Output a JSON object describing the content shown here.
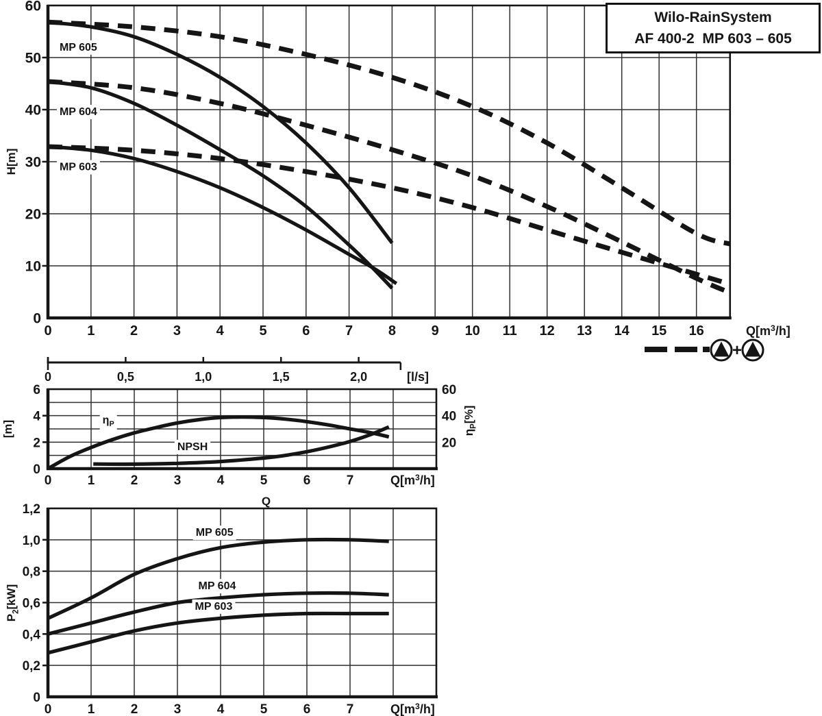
{
  "title_box": {
    "line1": "Wilo-RainSystem",
    "line2": "AF 400-2  MP 603 – 605"
  },
  "chart_data": [
    {
      "id": "hq",
      "type": "line",
      "title": "",
      "x_axis": {
        "label": {
          "pre": "Q[m",
          "sup": "3",
          "post": "/h]"
        },
        "ticks": [
          "0",
          "1",
          "2",
          "3",
          "4",
          "5",
          "6",
          "7",
          "8",
          "9",
          "10",
          "11",
          "12",
          "13",
          "14",
          "15",
          "16"
        ],
        "range": [
          0,
          16.9
        ],
        "grid": true
      },
      "y_axis": {
        "label": "H[m]",
        "ticks": [
          "0",
          "10",
          "20",
          "30",
          "40",
          "50",
          "60"
        ],
        "range": [
          0,
          60
        ],
        "grid": true
      },
      "series": [
        {
          "name": "MP 605",
          "style": "solid",
          "points": [
            [
              0,
              56.8
            ],
            [
              1,
              55.9
            ],
            [
              2,
              54.0
            ],
            [
              3,
              50.6
            ],
            [
              4,
              46.2
            ],
            [
              5,
              40.6
            ],
            [
              6,
              33.6
            ],
            [
              7,
              25.0
            ],
            [
              8,
              14.4
            ]
          ]
        },
        {
          "name": "MP 604",
          "style": "solid",
          "points": [
            [
              0,
              45.4
            ],
            [
              1,
              44.2
            ],
            [
              2,
              41.2
            ],
            [
              3,
              37.0
            ],
            [
              4,
              32.3
            ],
            [
              5,
              27.3
            ],
            [
              6,
              21.4
            ],
            [
              7,
              14.0
            ],
            [
              7.5,
              10.0
            ],
            [
              8,
              5.7
            ]
          ]
        },
        {
          "name": "MP 603",
          "style": "solid",
          "points": [
            [
              0,
              32.9
            ],
            [
              1,
              32.2
            ],
            [
              2,
              30.6
            ],
            [
              3,
              28.1
            ],
            [
              4,
              25.0
            ],
            [
              5,
              21.2
            ],
            [
              6,
              16.9
            ],
            [
              7,
              12.2
            ],
            [
              7.6,
              9.4
            ],
            [
              8.1,
              6.6
            ]
          ]
        },
        {
          "name": "MP 605 two pumps parallel",
          "style": "dashed",
          "points": [
            [
              0,
              56.8
            ],
            [
              2,
              55.9
            ],
            [
              4,
              54.0
            ],
            [
              6,
              50.6
            ],
            [
              8,
              46.2
            ],
            [
              10,
              40.6
            ],
            [
              12,
              33.6
            ],
            [
              14,
              25.0
            ],
            [
              16,
              16.2
            ],
            [
              16.9,
              14.2
            ]
          ]
        },
        {
          "name": "MP 604 two pumps parallel",
          "style": "dashed",
          "points": [
            [
              0,
              45.4
            ],
            [
              2,
              44.2
            ],
            [
              4,
              41.2
            ],
            [
              6,
              37.0
            ],
            [
              8,
              32.3
            ],
            [
              10,
              27.3
            ],
            [
              12,
              21.4
            ],
            [
              14,
              14.6
            ],
            [
              16,
              7.6
            ],
            [
              16.85,
              5.0
            ]
          ]
        },
        {
          "name": "MP 603 two pumps parallel",
          "style": "dashed",
          "points": [
            [
              0,
              32.9
            ],
            [
              2,
              32.2
            ],
            [
              4,
              30.6
            ],
            [
              6,
              28.1
            ],
            [
              8,
              25.0
            ],
            [
              10,
              21.2
            ],
            [
              12,
              16.9
            ],
            [
              14,
              12.6
            ],
            [
              16,
              8.4
            ],
            [
              16.9,
              6.5
            ]
          ]
        }
      ],
      "curve_labels": [
        {
          "text": "MP 605",
          "q": 0.27,
          "v": 52.1,
          "anchor": "start"
        },
        {
          "text": "MP 604",
          "q": 0.27,
          "v": 39.7,
          "anchor": "start"
        },
        {
          "text": "MP 603",
          "q": 0.27,
          "v": 29.1,
          "anchor": "start"
        }
      ],
      "legend": {
        "line_style": "dashed",
        "icons": [
          "pump-icon",
          "pump-icon"
        ],
        "separator": "+"
      }
    },
    {
      "id": "npsh_eta",
      "type": "line",
      "title": "",
      "x_axis": {
        "label": {
          "pre": "Q[m",
          "sup": "3",
          "post": "/h]"
        },
        "ticks": [
          "0",
          "1",
          "2",
          "3",
          "4",
          "5",
          "6",
          "7"
        ],
        "range": [
          0,
          9.0
        ],
        "grid_values": [
          1,
          2,
          3,
          4,
          5,
          6,
          7,
          8
        ]
      },
      "x_axis_secondary": {
        "unit": "[l/s]",
        "ticks": [
          "0",
          "0,5",
          "1,0",
          "1,5",
          "2,0"
        ],
        "range_ls": [
          0,
          2.27
        ],
        "m3h_per_ls": 3.6
      },
      "y_axis_left": {
        "label": "[m]",
        "ticks": [
          "0",
          "2",
          "4",
          "6"
        ],
        "range": [
          0,
          6
        ],
        "grid_step": 1
      },
      "y_axis_right": {
        "label": {
          "pre": "η",
          "sub": "P",
          "post": "[%]"
        },
        "ticks": [
          "20",
          "40",
          "60"
        ],
        "range": [
          0,
          60
        ]
      },
      "series": [
        {
          "name": "eta_p",
          "axis": "right",
          "style": "solid",
          "points": [
            [
              0,
              0
            ],
            [
              0.5,
              9
            ],
            [
              1,
              16
            ],
            [
              1.5,
              22
            ],
            [
              2,
              27
            ],
            [
              2.5,
              31
            ],
            [
              3,
              34.5
            ],
            [
              3.5,
              37
            ],
            [
              4,
              38.6
            ],
            [
              4.5,
              39
            ],
            [
              5,
              38.6
            ],
            [
              5.5,
              37.4
            ],
            [
              6,
              35.5
            ],
            [
              6.5,
              33
            ],
            [
              7,
              30
            ],
            [
              7.5,
              27
            ],
            [
              7.9,
              24
            ]
          ]
        },
        {
          "name": "NPSH",
          "axis": "left",
          "style": "solid",
          "points": [
            [
              1.05,
              0.35
            ],
            [
              2,
              0.34
            ],
            [
              3,
              0.4
            ],
            [
              4,
              0.54
            ],
            [
              5,
              0.8
            ],
            [
              5.5,
              1.0
            ],
            [
              6,
              1.28
            ],
            [
              6.5,
              1.63
            ],
            [
              7,
              2.05
            ],
            [
              7.5,
              2.6
            ],
            [
              7.9,
              3.15
            ]
          ]
        }
      ],
      "curve_labels": [
        {
          "text": {
            "pre": "η",
            "sub": "P"
          },
          "q": 1.4,
          "v": 3.72,
          "anchor": "middle"
        },
        {
          "text": "NPSH",
          "q": 3.35,
          "v": 1.7,
          "anchor": "middle"
        }
      ]
    },
    {
      "id": "power",
      "type": "line",
      "title": "Q",
      "x_axis": {
        "label": {
          "pre": "Q[m",
          "sup": "3",
          "post": "/h]"
        },
        "ticks": [
          "0",
          "1",
          "2",
          "3",
          "4",
          "5",
          "6",
          "7"
        ],
        "range": [
          0,
          9.0
        ],
        "grid_values": [
          1,
          2,
          3,
          4,
          5,
          6,
          7,
          8
        ]
      },
      "y_axis": {
        "label": {
          "pre": "P",
          "sub": "2",
          "post": "[kW]"
        },
        "ticks": [
          "0",
          "0,2",
          "0,4",
          "0,6",
          "0,8",
          "1,0",
          "1,2"
        ],
        "range": [
          0,
          1.2
        ]
      },
      "series": [
        {
          "name": "MP 605",
          "style": "solid",
          "points": [
            [
              0,
              0.5
            ],
            [
              1,
              0.63
            ],
            [
              2,
              0.78
            ],
            [
              3,
              0.88
            ],
            [
              4,
              0.95
            ],
            [
              5,
              0.985
            ],
            [
              6,
              1.0
            ],
            [
              7,
              1.0
            ],
            [
              7.9,
              0.99
            ]
          ]
        },
        {
          "name": "MP 604",
          "style": "solid",
          "points": [
            [
              0,
              0.4
            ],
            [
              1,
              0.47
            ],
            [
              2,
              0.54
            ],
            [
              3,
              0.6
            ],
            [
              4,
              0.63
            ],
            [
              5,
              0.65
            ],
            [
              6,
              0.66
            ],
            [
              7,
              0.66
            ],
            [
              7.9,
              0.65
            ]
          ]
        },
        {
          "name": "MP 603",
          "style": "solid",
          "points": [
            [
              0,
              0.28
            ],
            [
              1,
              0.35
            ],
            [
              2,
              0.42
            ],
            [
              3,
              0.47
            ],
            [
              4,
              0.5
            ],
            [
              5,
              0.52
            ],
            [
              6,
              0.53
            ],
            [
              7,
              0.53
            ],
            [
              7.9,
              0.53
            ]
          ]
        }
      ],
      "curve_labels": [
        {
          "text": "MP 605",
          "q": 3.86,
          "v": 1.05,
          "anchor": "middle"
        },
        {
          "text": "MP 604",
          "q": 3.92,
          "v": 0.71,
          "anchor": "middle"
        },
        {
          "text": "MP 603",
          "q": 3.84,
          "v": 0.58,
          "anchor": "middle"
        }
      ]
    }
  ]
}
